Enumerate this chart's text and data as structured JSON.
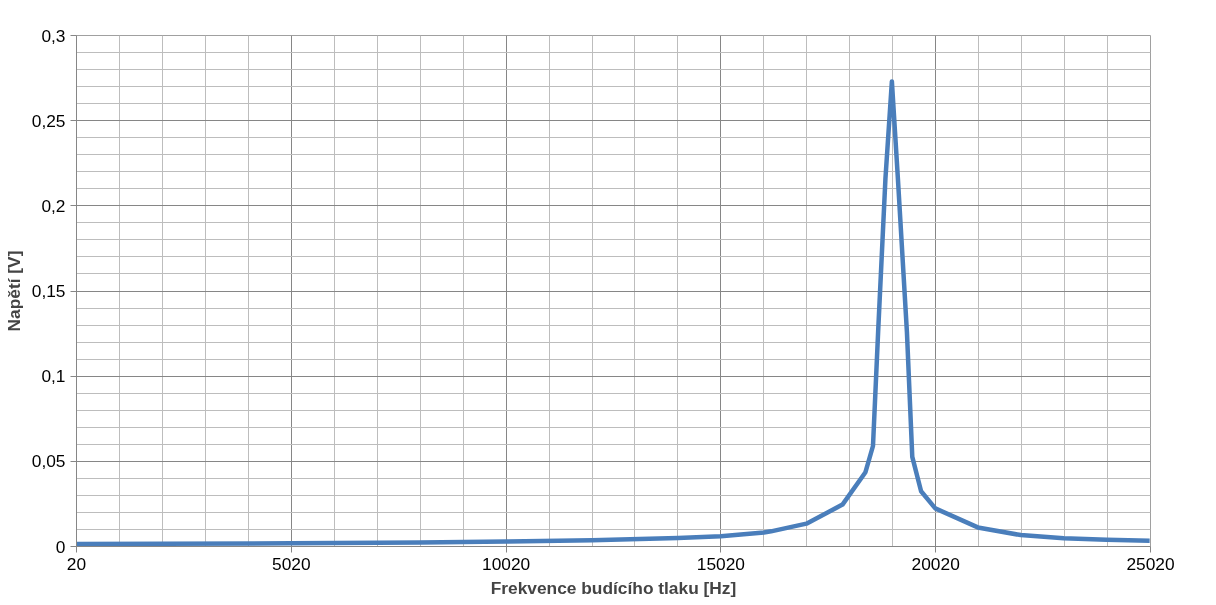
{
  "chart_data": {
    "type": "line",
    "xlabel": "Frekvence budícího tlaku [Hz]",
    "ylabel": "Napětí [V]",
    "x": [
      20,
      2020,
      5020,
      8020,
      10020,
      12020,
      14020,
      15020,
      16020,
      16188,
      17010,
      17850,
      18385,
      18560,
      18680,
      18850,
      19000,
      19140,
      19350,
      19475,
      19680,
      20010,
      21000,
      22000,
      23000,
      24000,
      25000
    ],
    "series": [
      {
        "color": "#4a7ebb",
        "values": [
          0.0015,
          0.0016,
          0.0019,
          0.0024,
          0.0029,
          0.0037,
          0.005,
          0.006,
          0.0082,
          0.0089,
          0.0134,
          0.0246,
          0.0436,
          0.059,
          0.126,
          0.216,
          0.273,
          0.216,
          0.126,
          0.0526,
          0.0324,
          0.0224,
          0.0112,
          0.0067,
          0.0049,
          0.004,
          0.0034
        ]
      }
    ],
    "xlim": [
      20,
      25020
    ],
    "xticks": [
      20,
      {
        "value": 1020,
        "label": null
      },
      {
        "value": 2020,
        "label": null
      },
      {
        "value": 3020,
        "label": null
      },
      {
        "value": 4020,
        "label": null
      },
      5020,
      {
        "value": 6020,
        "label": null
      },
      {
        "value": 7020,
        "label": null
      },
      {
        "value": 8020,
        "label": null
      },
      {
        "value": 9020,
        "label": null
      },
      10020,
      {
        "value": 11020,
        "label": null
      },
      {
        "value": 12020,
        "label": null
      },
      {
        "value": 13020,
        "label": null
      },
      {
        "value": 14020,
        "label": null
      },
      15020,
      {
        "value": 16020,
        "label": null
      },
      {
        "value": 17020,
        "label": null
      },
      {
        "value": 18020,
        "label": null
      },
      {
        "value": 19020,
        "label": null
      },
      20020,
      {
        "value": 21020,
        "label": null
      },
      {
        "value": 22020,
        "label": null
      },
      {
        "value": 23020,
        "label": null
      },
      {
        "value": 24020,
        "label": null
      },
      25020
    ],
    "ylim": [
      0,
      0.3
    ],
    "yticks": [
      0,
      {
        "value": 0.01,
        "label": null
      },
      {
        "value": 0.02,
        "label": null
      },
      {
        "value": 0.03,
        "label": null
      },
      {
        "value": 0.04,
        "label": null
      },
      {
        "value": 0.05,
        "label": "0,05"
      },
      {
        "value": 0.06,
        "label": null
      },
      {
        "value": 0.07,
        "label": null
      },
      {
        "value": 0.08,
        "label": null
      },
      {
        "value": 0.09,
        "label": null
      },
      {
        "value": 0.1,
        "label": "0,1"
      },
      {
        "value": 0.11,
        "label": null
      },
      {
        "value": 0.12,
        "label": null
      },
      {
        "value": 0.13,
        "label": null
      },
      {
        "value": 0.14,
        "label": null
      },
      {
        "value": 0.15,
        "label": "0,15"
      },
      {
        "value": 0.16,
        "label": null
      },
      {
        "value": 0.17,
        "label": null
      },
      {
        "value": 0.18,
        "label": null
      },
      {
        "value": 0.19,
        "label": null
      },
      {
        "value": 0.2,
        "label": "0,2"
      },
      {
        "value": 0.21,
        "label": null
      },
      {
        "value": 0.22,
        "label": null
      },
      {
        "value": 0.23,
        "label": null
      },
      {
        "value": 0.24,
        "label": null
      },
      {
        "value": 0.25,
        "label": "0,25"
      },
      {
        "value": 0.26,
        "label": null
      },
      {
        "value": 0.27,
        "label": null
      },
      {
        "value": 0.28,
        "label": null
      },
      {
        "value": 0.29,
        "label": null
      },
      {
        "value": 0.3,
        "label": "0,3"
      }
    ],
    "grid": true,
    "line_style": "solid",
    "marker": "none"
  }
}
